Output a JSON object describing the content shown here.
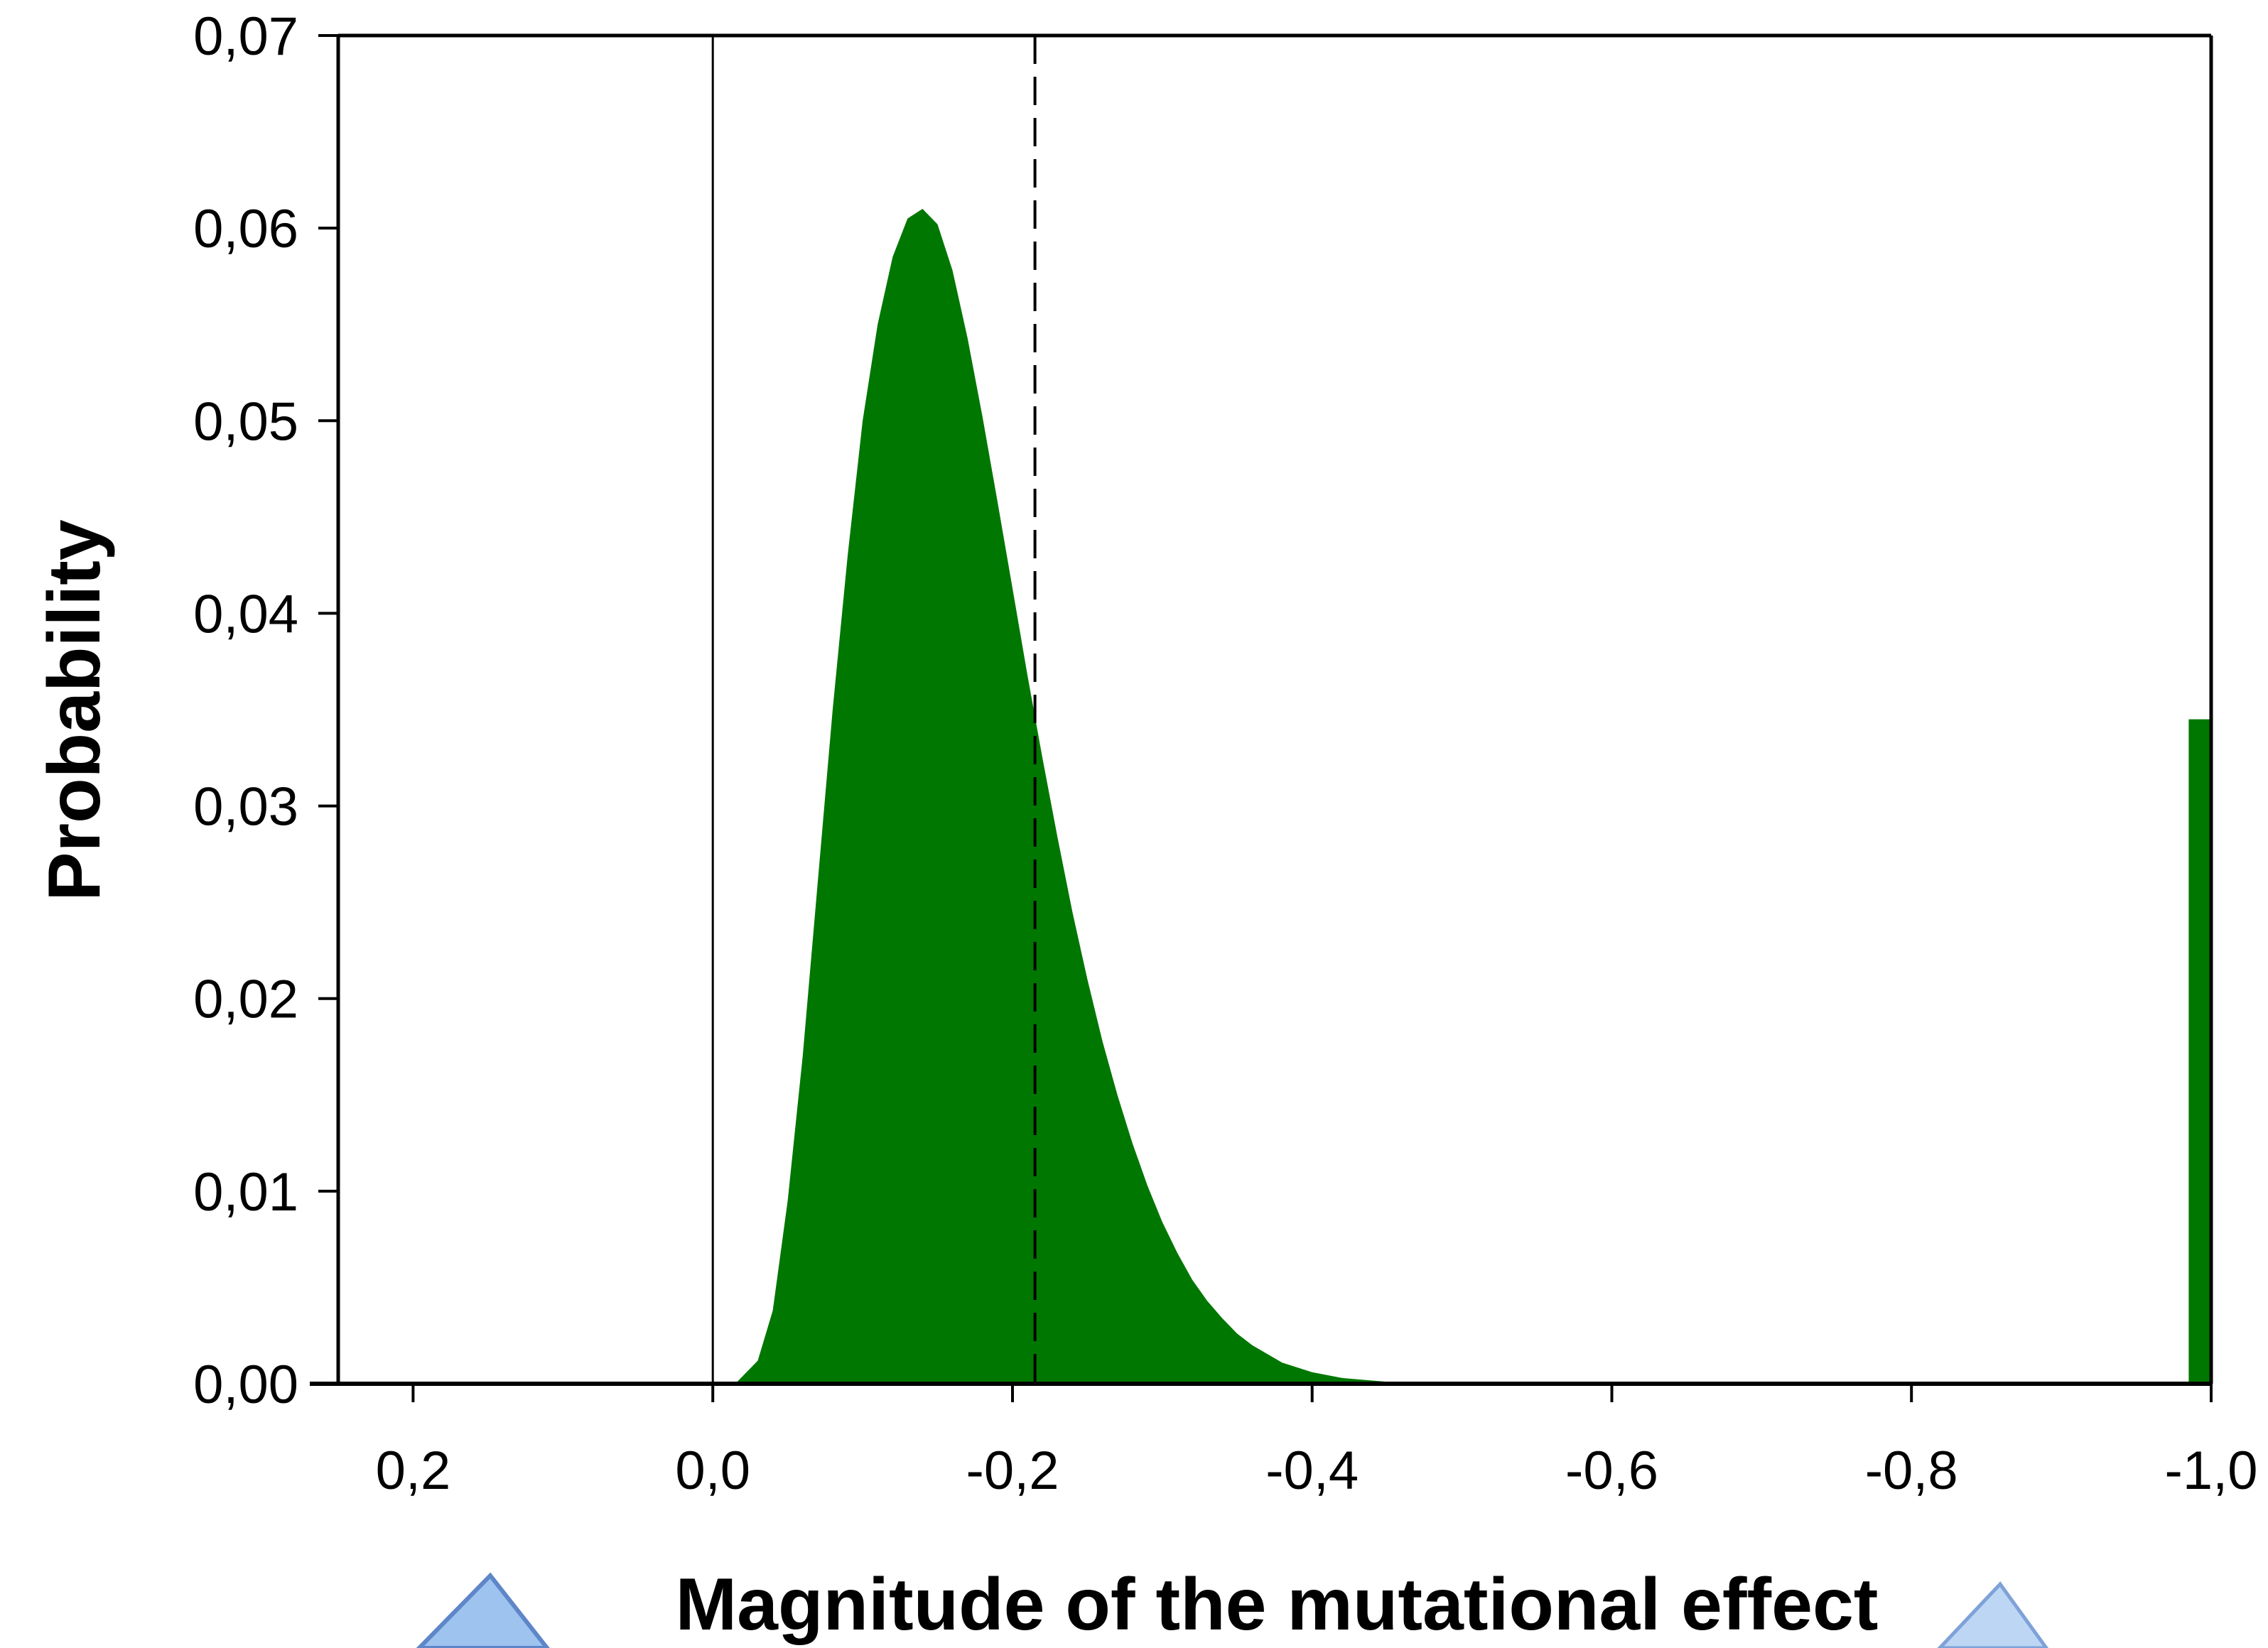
{
  "chart_data": {
    "type": "area",
    "title": "",
    "xlabel": "Magnitude of the mutational effect",
    "ylabel": "Probability",
    "xlim": [
      0.25,
      -1.0
    ],
    "ylim": [
      0,
      0.07
    ],
    "x_axis_reversed": true,
    "grid": false,
    "legend": "none",
    "x_ticks": [
      0.2,
      0.0,
      -0.2,
      -0.4,
      -0.6,
      -0.8,
      -1.0
    ],
    "x_tick_labels": [
      "0,2",
      "0,0",
      "-0,2",
      "-0,4",
      "-0,6",
      "-0,8",
      "-1,0"
    ],
    "y_ticks": [
      0,
      0.01,
      0.02,
      0.03,
      0.04,
      0.05,
      0.06,
      0.07
    ],
    "y_tick_labels": [
      "0,00",
      "0,01",
      "0,02",
      "0,03",
      "0,04",
      "0,05",
      "0,06",
      "0,07"
    ],
    "series": [
      {
        "type": "area",
        "color": "#007700",
        "x": [
          -0.015,
          -0.03,
          -0.04,
          -0.05,
          -0.06,
          -0.07,
          -0.08,
          -0.09,
          -0.1,
          -0.11,
          -0.12,
          -0.13,
          -0.14,
          -0.15,
          -0.16,
          -0.17,
          -0.18,
          -0.19,
          -0.2,
          -0.21,
          -0.22,
          -0.23,
          -0.24,
          -0.25,
          -0.26,
          -0.27,
          -0.28,
          -0.29,
          -0.3,
          -0.31,
          -0.32,
          -0.33,
          -0.34,
          -0.35,
          -0.36,
          -0.38,
          -0.4,
          -0.42,
          -0.45,
          -0.5
        ],
        "y": [
          0.0,
          0.0012,
          0.0038,
          0.0095,
          0.017,
          0.026,
          0.035,
          0.043,
          0.05,
          0.055,
          0.0585,
          0.0605,
          0.061,
          0.0602,
          0.0578,
          0.0543,
          0.0502,
          0.0458,
          0.0413,
          0.0368,
          0.0325,
          0.0284,
          0.0245,
          0.021,
          0.0178,
          0.015,
          0.0125,
          0.0103,
          0.0084,
          0.0068,
          0.0054,
          0.0043,
          0.0034,
          0.0026,
          0.002,
          0.0011,
          0.0006,
          0.0003,
          0.0001,
          0.0
        ]
      },
      {
        "type": "bar",
        "color": "#007700",
        "x_from": -0.985,
        "x_to": -1.0,
        "y": 0.0345
      }
    ],
    "reference_lines": [
      {
        "x": 0.0,
        "style": "solid",
        "color": "#000000"
      },
      {
        "x": -0.215,
        "style": "dashed",
        "color": "#000000"
      }
    ]
  }
}
